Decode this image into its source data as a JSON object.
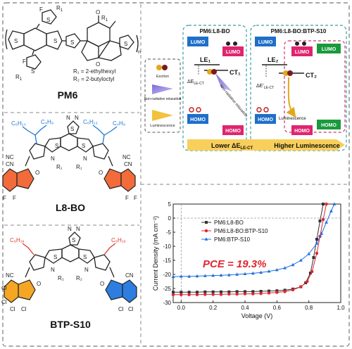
{
  "molecules": {
    "pm6": {
      "name": "PM6",
      "r1_label": "R",
      "r2_label": "R",
      "r1_sub": "1",
      "r2_sub": "2",
      "r1_def": "R₁ = 2-ethylhexyl",
      "r2_def": "R₂ = 2-butyloctyl",
      "atoms": {
        "F": "F",
        "S": "S",
        "O": "O",
        "n": "n"
      }
    },
    "l8bo": {
      "name": "L8-BO",
      "alkyl_a": "C₄H₉",
      "alkyl_b": "C₆H₁₃",
      "atoms": {
        "F": "F",
        "S": "S",
        "N": "N",
        "O": "O",
        "CN": "CN",
        "NC": "NC",
        "R1": "R₁"
      }
    },
    "btps10": {
      "name": "BTP-S10",
      "alkyl": "C₉H₁₉",
      "atoms": {
        "Cl": "Cl",
        "S": "S",
        "N": "N",
        "O": "O",
        "CN": "CN",
        "NC": "NC",
        "R2": "R₂"
      }
    }
  },
  "energy_diagram": {
    "left_title": "PM6:L8-BO",
    "right_title": "PM6:L8-BO:BTP-S10",
    "lumo": "LUMO",
    "homo": "HOMO",
    "le1": "LE₁",
    "le2": "LE₂",
    "ct1": "CT₁",
    "ct2": "CT₂",
    "delta_e": "ΔE",
    "delta_e_prime": "ΔE'",
    "delta_sub": "LE-CT",
    "nonradiative_relax": "Non-radiative relaxation",
    "luminescence": "Luminescence",
    "lower_label": "Lower ΔE",
    "lower_sub": "LE-CT",
    "higher_label": "Higher Luminescence",
    "legend": {
      "exciton": "Exciton",
      "nonradiative": "Non-radiative relaxation",
      "luminescence": "Luminescence"
    },
    "colors": {
      "lumo_blue": "#1f6fc9",
      "donor_pink": "#e0256f",
      "acceptor_green": "#1a9a3c",
      "arrow_yellow": "#f3c23c"
    }
  },
  "chart_data": {
    "type": "line",
    "xlabel": "Voltage (V)",
    "ylabel": "Current Density (mA cm⁻²)",
    "xlim": [
      -0.05,
      1.0
    ],
    "ylim": [
      -30,
      5
    ],
    "xticks": [
      "0.0",
      "0.2",
      "0.4",
      "0.6",
      "0.8",
      "1.0"
    ],
    "yticks": [
      "5",
      "0",
      "-5",
      "-10",
      "-15",
      "-20",
      "-25",
      "-30"
    ],
    "annotation": "PCE = 19.3%",
    "legend_position": "top-left",
    "series": [
      {
        "name": "PM6:L8-BO",
        "color": "#333333",
        "marker": "square",
        "x": [
          -0.05,
          0.0,
          0.05,
          0.1,
          0.15,
          0.2,
          0.25,
          0.3,
          0.35,
          0.4,
          0.45,
          0.5,
          0.55,
          0.6,
          0.65,
          0.7,
          0.75,
          0.78,
          0.81,
          0.83,
          0.85,
          0.87,
          0.89
        ],
        "y": [
          -26.3,
          -26.3,
          -26.3,
          -26.3,
          -26.2,
          -26.2,
          -26.2,
          -26.2,
          -26.1,
          -26.1,
          -26.1,
          -26.0,
          -25.9,
          -25.8,
          -25.6,
          -25.2,
          -24.4,
          -23.0,
          -19.5,
          -14.0,
          -7.5,
          -1.0,
          5.0
        ]
      },
      {
        "name": "PM6:L8-BO:BTP-S10",
        "color": "#e0252f",
        "marker": "circle",
        "x": [
          -0.05,
          0.0,
          0.05,
          0.1,
          0.15,
          0.2,
          0.25,
          0.3,
          0.35,
          0.4,
          0.45,
          0.5,
          0.55,
          0.6,
          0.65,
          0.7,
          0.75,
          0.79,
          0.82,
          0.85,
          0.87,
          0.89,
          0.91
        ],
        "y": [
          -27.2,
          -27.2,
          -27.2,
          -27.2,
          -27.1,
          -27.1,
          -27.1,
          -27.0,
          -27.0,
          -26.9,
          -26.9,
          -26.8,
          -26.6,
          -26.4,
          -26.1,
          -25.5,
          -24.4,
          -22.5,
          -19.0,
          -12.5,
          -6.5,
          -0.5,
          5.0
        ]
      },
      {
        "name": "PM6:BTP-S10",
        "color": "#1f6fe0",
        "marker": "triangle",
        "x": [
          -0.05,
          0.0,
          0.05,
          0.1,
          0.15,
          0.2,
          0.25,
          0.3,
          0.35,
          0.4,
          0.45,
          0.5,
          0.55,
          0.6,
          0.65,
          0.7,
          0.75,
          0.8,
          0.85,
          0.88,
          0.91,
          0.94,
          0.96
        ],
        "y": [
          -20.8,
          -20.7,
          -20.7,
          -20.6,
          -20.5,
          -20.4,
          -20.3,
          -20.2,
          -20.0,
          -19.8,
          -19.6,
          -19.3,
          -18.9,
          -18.4,
          -17.7,
          -16.6,
          -15.0,
          -12.7,
          -9.0,
          -5.5,
          -1.5,
          2.5,
          5.0
        ]
      }
    ]
  }
}
